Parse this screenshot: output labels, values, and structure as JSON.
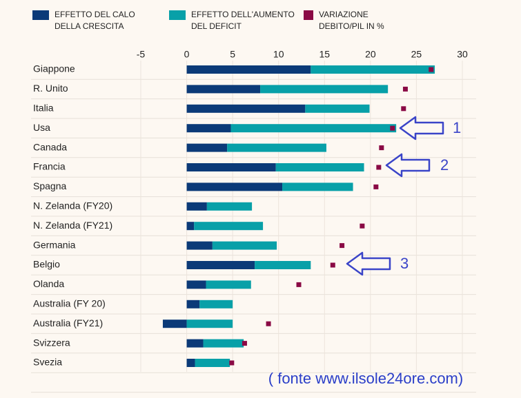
{
  "chart_data": {
    "type": "bar",
    "orientation": "horizontal",
    "stacked": true,
    "categories": [
      "Giappone",
      "R. Unito",
      "Italia",
      "Usa",
      "Canada",
      "Francia",
      "Spagna",
      "N. Zelanda  (FY20)",
      "N. Zelanda (FY21)",
      "Germania",
      "Belgio",
      "Olanda",
      "Australia (FY 20)",
      "Australia (FY21)",
      "Svizzera",
      "Svezia"
    ],
    "series": [
      {
        "name": "EFFETTO DEL CALO DELLA CRESCITA",
        "color": "#0b3a78",
        "kind": "bar",
        "values": [
          13.5,
          8.0,
          12.9,
          4.8,
          4.4,
          9.7,
          10.4,
          2.2,
          0.8,
          2.8,
          7.4,
          2.1,
          1.4,
          -2.6,
          1.8,
          0.9
        ]
      },
      {
        "name": "EFFETTO DELL'AUMENTO DEL DEFICIT",
        "color": "#08a0a8",
        "kind": "bar",
        "values": [
          13.5,
          13.9,
          7.0,
          18.0,
          10.8,
          9.6,
          7.7,
          4.9,
          7.5,
          7.0,
          6.1,
          4.9,
          3.6,
          5.0,
          4.4,
          3.8
        ]
      },
      {
        "name": "VARIAZIONE DEBITO/PIL IN %",
        "color": "#8a0a45",
        "kind": "marker",
        "values": [
          26.6,
          23.8,
          23.6,
          22.4,
          21.2,
          20.9,
          20.6,
          null,
          19.1,
          16.9,
          15.9,
          12.2,
          null,
          8.9,
          6.3,
          4.9
        ]
      }
    ],
    "xlim": [
      -5,
      30
    ],
    "xticks": [
      -5,
      0,
      5,
      10,
      15,
      20,
      25,
      30
    ],
    "grid": true,
    "annotations": [
      "1",
      "2",
      "3"
    ],
    "source": "( fonte www.ilsole24ore.com)"
  }
}
